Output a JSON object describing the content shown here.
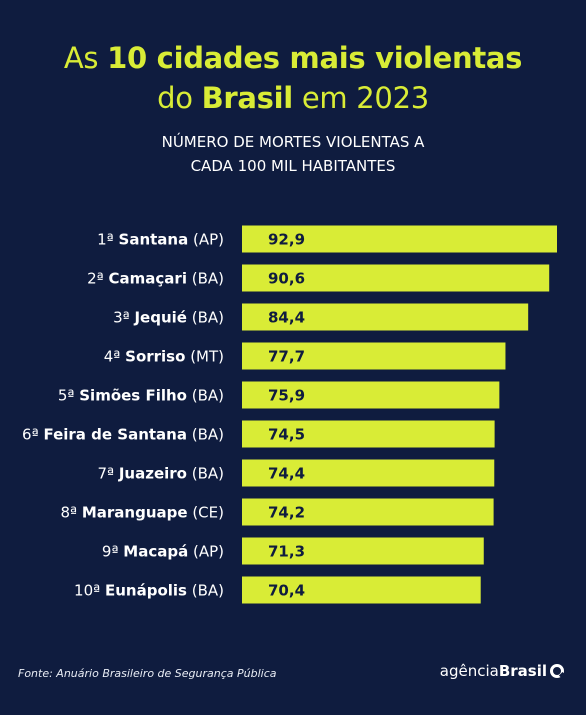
{
  "title": {
    "line1_prefix": "As ",
    "line1_bold": "10 cidades mais violentas",
    "line2_prefix": "do ",
    "line2_bold": "Brasil",
    "line2_suffix": " em 2023"
  },
  "subtitle": {
    "line1": "NÚMERO DE MORTES VIOLENTAS A",
    "line2": "CADA 100 MIL HABITANTES"
  },
  "chart_data": {
    "type": "bar",
    "orientation": "horizontal",
    "categories": [
      {
        "rank": "1ª",
        "city": "Santana",
        "state": "(AP)"
      },
      {
        "rank": "2ª",
        "city": "Camaçari",
        "state": "(BA)"
      },
      {
        "rank": "3ª",
        "city": "Jequié",
        "state": "(BA)"
      },
      {
        "rank": "4ª",
        "city": "Sorriso",
        "state": "(MT)"
      },
      {
        "rank": "5ª",
        "city": "Simões Filho",
        "state": "(BA)"
      },
      {
        "rank": "6ª",
        "city": "Feira de Santana",
        "state": "(BA)"
      },
      {
        "rank": "7ª",
        "city": "Juazeiro",
        "state": "(BA)"
      },
      {
        "rank": "8ª",
        "city": "Maranguape",
        "state": "(CE)"
      },
      {
        "rank": "9ª",
        "city": "Macapá",
        "state": "(AP)"
      },
      {
        "rank": "10ª",
        "city": "Eunápolis",
        "state": "(BA)"
      }
    ],
    "values": [
      92.9,
      90.6,
      84.4,
      77.7,
      75.9,
      74.5,
      74.4,
      74.2,
      71.3,
      70.4
    ],
    "value_labels": [
      "92,9",
      "90,6",
      "84,4",
      "77,7",
      "75,9",
      "74,5",
      "74,4",
      "74,2",
      "71,3",
      "70,4"
    ],
    "bar_color": "#d9ec36",
    "grid": false
  },
  "footer": {
    "source": "Fonte: Anuário Brasileiro de Segurança Pública",
    "brand_regular": "agência",
    "brand_bold": "Brasil",
    "brand_icon": "circle-logo-icon"
  },
  "colors": {
    "background": "#0f1c3f",
    "accent": "#d9ec36",
    "text": "#ffffff"
  }
}
